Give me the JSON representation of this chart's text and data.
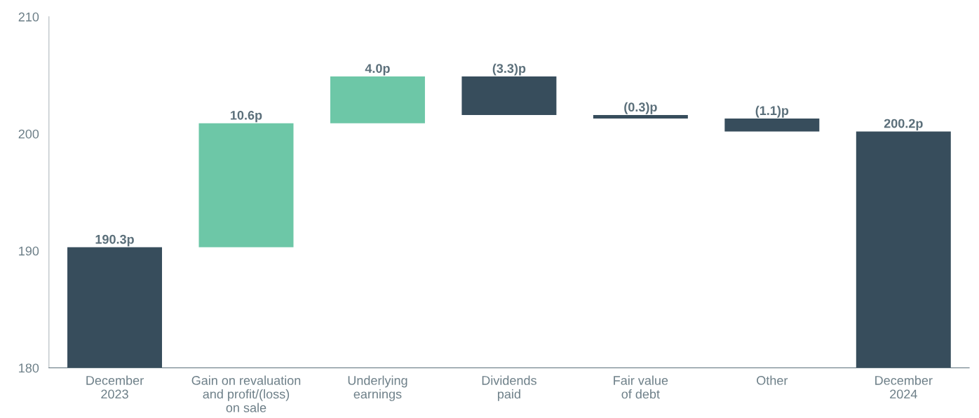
{
  "chart_data": {
    "type": "bar",
    "categories": [
      "December\n2023",
      "Gain on revaluation\nand profit/(loss)\non sale",
      "Underlying\nearnings",
      "Dividends\npaid",
      "Fair value\nof debt",
      "Other",
      "December\n2024"
    ],
    "base": [
      180,
      190.3,
      200.9,
      204.9,
      201.6,
      201.3,
      180
    ],
    "values": [
      10.3,
      10.6,
      4.0,
      -3.3,
      -0.3,
      -1.1,
      20.2
    ],
    "value_labels": [
      "190.3p",
      "10.6p",
      "4.0p",
      "(3.3)p",
      "(0.3)p",
      "(1.1)p",
      "200.2p"
    ],
    "colors": [
      "#374d5c",
      "#6dc7a7",
      "#6dc7a7",
      "#374d5c",
      "#374d5c",
      "#374d5c",
      "#374d5c"
    ],
    "ylim": [
      180,
      210
    ],
    "yticks": [
      180,
      190,
      200,
      210
    ],
    "grid": false
  }
}
